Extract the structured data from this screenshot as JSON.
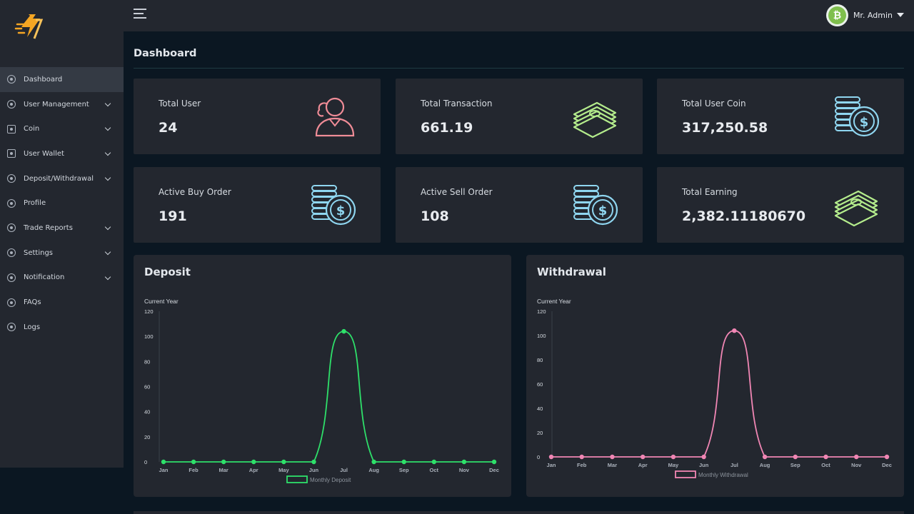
{
  "header": {
    "user_name": "Mr. Admin",
    "avatar_glyph": "₿"
  },
  "sidebar": {
    "items": [
      {
        "label": "Dashboard",
        "icon": "dashboard-icon",
        "active": true,
        "chevron": false
      },
      {
        "label": "User Management",
        "icon": "user-circle-icon",
        "active": false,
        "chevron": true
      },
      {
        "label": "Coin",
        "icon": "coin-icon",
        "active": false,
        "chevron": true
      },
      {
        "label": "User Wallet",
        "icon": "wallet-icon",
        "active": false,
        "chevron": true
      },
      {
        "label": "Deposit/Withdrawal",
        "icon": "exchange-icon",
        "active": false,
        "chevron": true
      },
      {
        "label": "Profile",
        "icon": "profile-icon",
        "active": false,
        "chevron": false
      },
      {
        "label": "Trade Reports",
        "icon": "report-icon",
        "active": false,
        "chevron": true
      },
      {
        "label": "Settings",
        "icon": "gear-icon",
        "active": false,
        "chevron": true
      },
      {
        "label": "Notification",
        "icon": "bell-icon",
        "active": false,
        "chevron": true
      },
      {
        "label": "FAQs",
        "icon": "question-icon",
        "active": false,
        "chevron": false
      },
      {
        "label": "Logs",
        "icon": "logs-icon",
        "active": false,
        "chevron": false
      }
    ]
  },
  "page": {
    "title": "Dashboard"
  },
  "cards": [
    {
      "label": "Total User",
      "value": "24",
      "icon": "user-icon",
      "color": "#f08c97"
    },
    {
      "label": "Total Transaction",
      "value": "661.19",
      "icon": "money-stack-icon",
      "color": "#b4ec8c"
    },
    {
      "label": "Total User Coin",
      "value": "317,250.58",
      "icon": "coin-stack-icon",
      "color": "#8fd6f0"
    },
    {
      "label": "Active Buy Order",
      "value": "191",
      "icon": "coin-stack-icon",
      "color": "#8fd6f0"
    },
    {
      "label": "Active Sell Order",
      "value": "108",
      "icon": "coin-stack-icon",
      "color": "#8fd6f0"
    },
    {
      "label": "Total Earning",
      "value": "2,382.11180670",
      "icon": "money-stack-icon",
      "color": "#b4ec8c"
    }
  ],
  "panels": {
    "deposit_title": "Deposit",
    "withdrawal_title": "Withdrawal"
  },
  "chart_data": [
    {
      "type": "line",
      "title": "Deposit",
      "ylabel": "Current Year",
      "categories": [
        "Jan",
        "Feb",
        "Mar",
        "Apr",
        "May",
        "Jun",
        "Jul",
        "Aug",
        "Sep",
        "Oct",
        "Nov",
        "Dec"
      ],
      "series": [
        {
          "name": "Monthly Deposit",
          "values": [
            0,
            0,
            0,
            0,
            0,
            0,
            104,
            0,
            0,
            0,
            0,
            0
          ],
          "color": "#2ee06a"
        }
      ],
      "ylim": [
        0,
        120
      ],
      "yticks": [
        0,
        20,
        40,
        60,
        80,
        100,
        120
      ],
      "legend": "bottom"
    },
    {
      "type": "line",
      "title": "Withdrawal",
      "ylabel": "Current Year",
      "categories": [
        "Jan",
        "Feb",
        "Mar",
        "Apr",
        "May",
        "Jun",
        "Jul",
        "Aug",
        "Sep",
        "Oct",
        "Nov",
        "Dec"
      ],
      "series": [
        {
          "name": "Monthly Withdrawal",
          "values": [
            0,
            0,
            0,
            0,
            0,
            0,
            104,
            0,
            0,
            0,
            0,
            0
          ],
          "color": "#f086b4"
        }
      ],
      "ylim": [
        0,
        120
      ],
      "yticks": [
        0,
        20,
        40,
        60,
        80,
        100,
        120
      ],
      "legend": "bottom"
    }
  ]
}
